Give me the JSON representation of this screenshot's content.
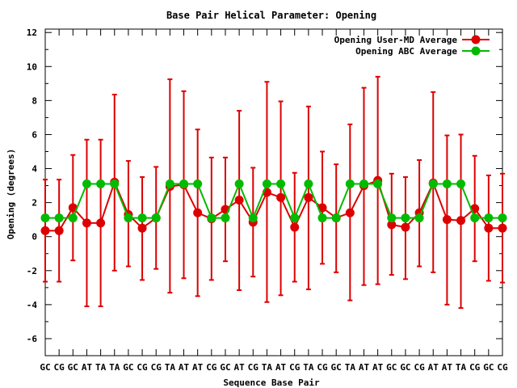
{
  "chart_data": {
    "type": "line",
    "title": "Base Pair Helical Parameter: Opening",
    "xlabel": "Sequence Base Pair",
    "ylabel": "Opening (degrees)",
    "ylim": [
      -7,
      12.2
    ],
    "yticks": [
      -6,
      -4,
      -2,
      0,
      2,
      4,
      6,
      8,
      10,
      12
    ],
    "grid": false,
    "legend_position": "top-right",
    "categories": [
      "GC",
      "CG",
      "GC",
      "AT",
      "TA",
      "TA",
      "GC",
      "CG",
      "CG",
      "TA",
      "AT",
      "AT",
      "CG",
      "GC",
      "AT",
      "CG",
      "TA",
      "AT",
      "CG",
      "TA",
      "CG",
      "GC",
      "TA",
      "AT",
      "AT",
      "GC",
      "GC",
      "CG",
      "AT",
      "AT",
      "TA",
      "CG",
      "GC",
      "CG"
    ],
    "series": [
      {
        "name": "Opening User-MD Average",
        "color": "#dd0000",
        "error_bars": true,
        "values": [
          0.35,
          0.35,
          1.7,
          0.8,
          0.8,
          3.2,
          1.3,
          0.5,
          1.1,
          2.95,
          3.05,
          1.4,
          1.05,
          1.6,
          2.15,
          0.85,
          2.6,
          2.3,
          0.55,
          2.3,
          1.7,
          1.1,
          1.4,
          3.0,
          3.3,
          0.7,
          0.55,
          1.4,
          3.15,
          1.0,
          0.95,
          1.65,
          0.5,
          0.5
        ],
        "lower": [
          -2.65,
          -2.65,
          -1.4,
          -4.1,
          -4.1,
          -2.0,
          -1.75,
          -2.55,
          -1.9,
          -3.3,
          -2.45,
          -3.5,
          -2.55,
          -1.45,
          -3.15,
          -2.35,
          -3.85,
          -3.45,
          -2.65,
          -3.1,
          -1.6,
          -2.1,
          -3.75,
          -2.85,
          -2.8,
          -2.25,
          -2.5,
          -1.75,
          -2.1,
          -4.0,
          -4.2,
          -1.45,
          -2.6,
          -2.7
        ],
        "upper": [
          3.35,
          3.35,
          4.8,
          5.7,
          5.7,
          8.35,
          4.45,
          3.5,
          4.1,
          9.25,
          8.55,
          6.3,
          4.65,
          4.65,
          7.4,
          4.05,
          9.1,
          7.95,
          3.75,
          7.65,
          5.0,
          4.25,
          6.6,
          8.75,
          9.4,
          3.7,
          3.5,
          4.5,
          8.5,
          5.95,
          6.0,
          4.75,
          3.6,
          3.7
        ]
      },
      {
        "name": "Opening ABC Average",
        "color": "#00bb00",
        "error_bars": false,
        "values": [
          1.1,
          1.1,
          1.1,
          3.1,
          3.1,
          3.1,
          1.1,
          1.1,
          1.1,
          3.1,
          3.1,
          3.1,
          1.1,
          1.1,
          3.1,
          1.1,
          3.1,
          3.1,
          1.1,
          3.1,
          1.1,
          1.1,
          3.1,
          3.1,
          3.1,
          1.1,
          1.1,
          1.1,
          3.1,
          3.1,
          3.1,
          1.1,
          1.1,
          1.1
        ]
      }
    ]
  }
}
